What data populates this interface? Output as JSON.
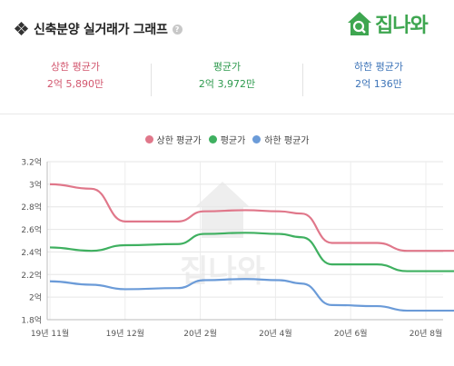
{
  "title": "신축분양 실거래가 그래프",
  "logo_text": "집나와",
  "stats": [
    {
      "label": "상한 평균가",
      "value": "2억 5,890만",
      "color": "#d2566e"
    },
    {
      "label": "평균가",
      "value": "2억 3,972만",
      "color": "#2e9a4e"
    },
    {
      "label": "하한 평균가",
      "value": "2억 136만",
      "color": "#3d74b8"
    }
  ],
  "watermark_text": "집나와",
  "chart_data": {
    "type": "line",
    "y_ticks": [
      "3.2억",
      "3억",
      "2.8억",
      "2.6억",
      "2.4억",
      "2.2억",
      "2억",
      "1.8억"
    ],
    "ylim": [
      1.8,
      3.2
    ],
    "x_ticks": [
      "19년 11월",
      "19년 12월",
      "20년 2월",
      "20년 4월",
      "20년 6월",
      "20년 8월"
    ],
    "x_tick_pos": [
      0,
      1,
      2,
      3,
      4,
      5
    ],
    "xlim": [
      0,
      6.2
    ],
    "grid": true,
    "legend": "top-center",
    "series": [
      {
        "name": "상한 평균가",
        "color": "#e0778a",
        "points": [
          [
            0,
            3.0
          ],
          [
            0.55,
            2.96
          ],
          [
            1.0,
            2.67
          ],
          [
            1.7,
            2.67
          ],
          [
            2.05,
            2.76
          ],
          [
            2.6,
            2.77
          ],
          [
            3.05,
            2.76
          ],
          [
            3.35,
            2.74
          ],
          [
            3.75,
            2.48
          ],
          [
            4.35,
            2.48
          ],
          [
            4.75,
            2.41
          ],
          [
            6.2,
            2.41
          ]
        ]
      },
      {
        "name": "평균가",
        "color": "#3fb060",
        "points": [
          [
            0,
            2.44
          ],
          [
            0.55,
            2.41
          ],
          [
            1.0,
            2.46
          ],
          [
            1.7,
            2.47
          ],
          [
            2.05,
            2.56
          ],
          [
            2.6,
            2.57
          ],
          [
            3.05,
            2.56
          ],
          [
            3.35,
            2.53
          ],
          [
            3.75,
            2.29
          ],
          [
            4.35,
            2.29
          ],
          [
            4.75,
            2.23
          ],
          [
            6.2,
            2.23
          ]
        ]
      },
      {
        "name": "하한 평균가",
        "color": "#6b9bd8",
        "points": [
          [
            0,
            2.14
          ],
          [
            0.55,
            2.11
          ],
          [
            1.0,
            2.07
          ],
          [
            1.7,
            2.08
          ],
          [
            2.05,
            2.15
          ],
          [
            2.6,
            2.16
          ],
          [
            3.05,
            2.15
          ],
          [
            3.35,
            2.12
          ],
          [
            3.75,
            1.93
          ],
          [
            4.35,
            1.92
          ],
          [
            4.75,
            1.88
          ],
          [
            6.2,
            1.88
          ]
        ]
      }
    ]
  }
}
